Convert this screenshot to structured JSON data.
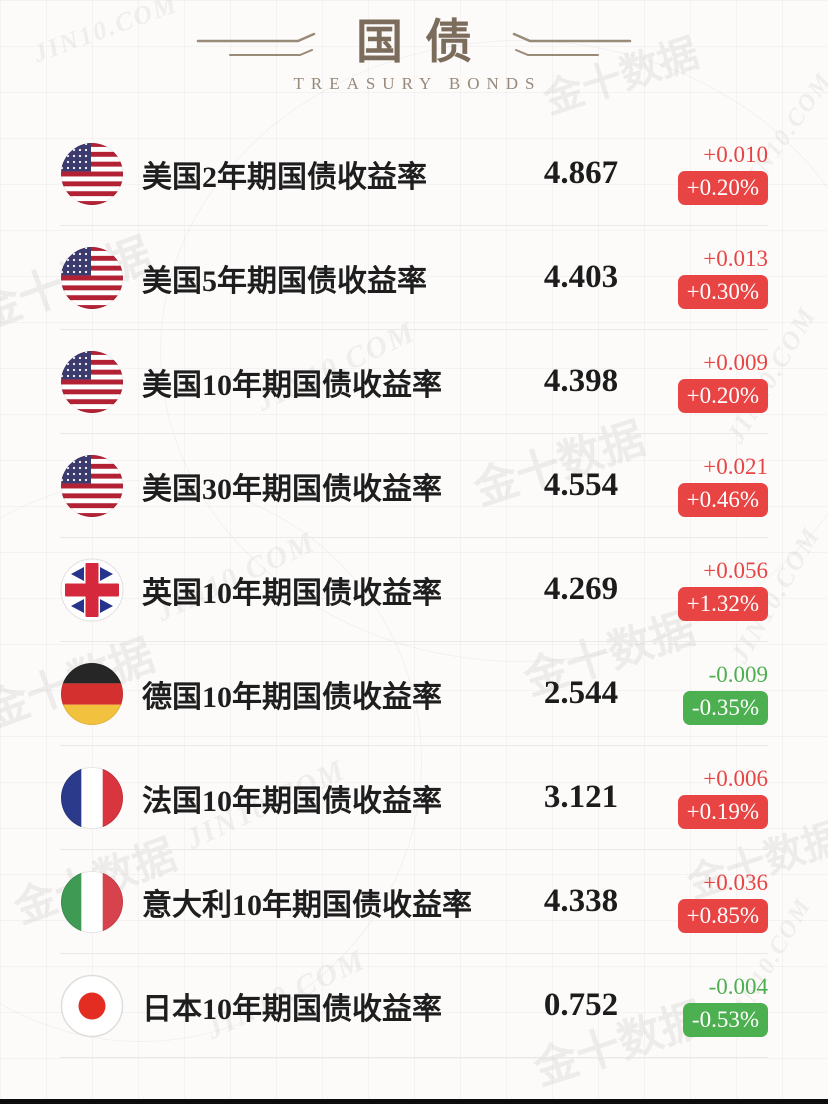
{
  "header": {
    "title": "国债",
    "subtitle": "TREASURY BONDS"
  },
  "colors": {
    "up": "#e94444",
    "down": "#4caf50",
    "title": "#7b6c5c",
    "subtitle": "#97887a"
  },
  "watermark": {
    "cn": "金十数据",
    "en": "JIN10.COM"
  },
  "rows": [
    {
      "flag": "us",
      "label": "美国2年期国债收益率",
      "value": "4.867",
      "change": "+0.010",
      "change_pct": "+0.20%",
      "direction": "up"
    },
    {
      "flag": "us",
      "label": "美国5年期国债收益率",
      "value": "4.403",
      "change": "+0.013",
      "change_pct": "+0.30%",
      "direction": "up"
    },
    {
      "flag": "us",
      "label": "美国10年期国债收益率",
      "value": "4.398",
      "change": "+0.009",
      "change_pct": "+0.20%",
      "direction": "up"
    },
    {
      "flag": "us",
      "label": "美国30年期国债收益率",
      "value": "4.554",
      "change": "+0.021",
      "change_pct": "+0.46%",
      "direction": "up"
    },
    {
      "flag": "uk",
      "label": "英国10年期国债收益率",
      "value": "4.269",
      "change": "+0.056",
      "change_pct": "+1.32%",
      "direction": "up"
    },
    {
      "flag": "de",
      "label": "德国10年期国债收益率",
      "value": "2.544",
      "change": "-0.009",
      "change_pct": "-0.35%",
      "direction": "down"
    },
    {
      "flag": "fr",
      "label": "法国10年期国债收益率",
      "value": "3.121",
      "change": "+0.006",
      "change_pct": "+0.19%",
      "direction": "up"
    },
    {
      "flag": "it",
      "label": "意大利10年期国债收益率",
      "value": "4.338",
      "change": "+0.036",
      "change_pct": "+0.85%",
      "direction": "up"
    },
    {
      "flag": "jp",
      "label": "日本10年期国债收益率",
      "value": "0.752",
      "change": "-0.004",
      "change_pct": "-0.53%",
      "direction": "down"
    }
  ]
}
